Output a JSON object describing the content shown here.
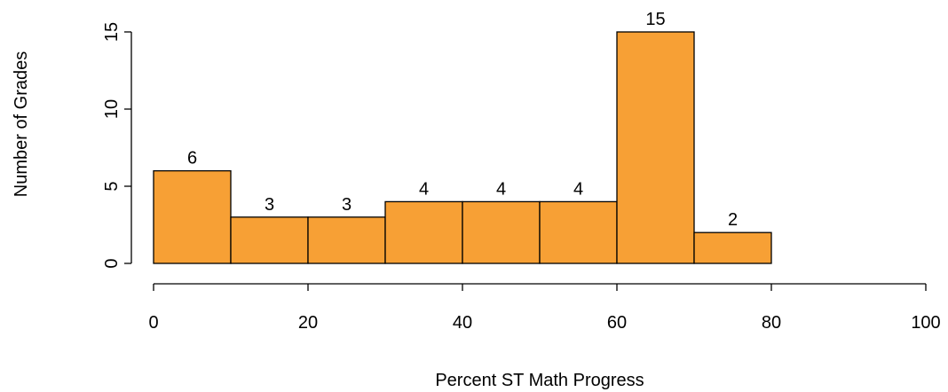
{
  "chart_data": {
    "type": "histogram",
    "x_label": "Percent ST Math Progress",
    "y_label": "Number of Grades",
    "bins": [
      0,
      10,
      20,
      30,
      40,
      50,
      60,
      70,
      80
    ],
    "values": [
      6,
      3,
      3,
      4,
      4,
      4,
      15,
      2
    ],
    "color": "#f7a035",
    "xlim": [
      0,
      100
    ],
    "xticks": [
      0,
      20,
      40,
      60,
      80,
      100
    ],
    "ylim": [
      0,
      15
    ],
    "yticks": [
      0,
      5,
      10,
      15
    ],
    "grid": false
  }
}
